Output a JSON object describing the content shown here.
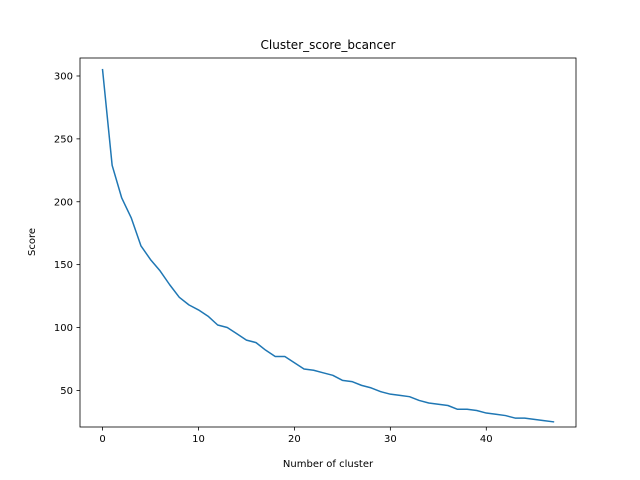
{
  "chart_data": {
    "type": "line",
    "title": "Cluster_score_bcancer",
    "xlabel": "Number of cluster",
    "ylabel": "Score",
    "xlim": [
      -2.35,
      49.35
    ],
    "ylim": [
      20.9,
      314.3
    ],
    "xticks": [
      0,
      10,
      20,
      30,
      40
    ],
    "yticks": [
      50,
      100,
      150,
      200,
      250,
      300
    ],
    "grid": false,
    "series": [
      {
        "color": "#1f77b4",
        "x": [
          0,
          1,
          2,
          3,
          4,
          5,
          6,
          7,
          8,
          9,
          10,
          11,
          12,
          13,
          14,
          15,
          16,
          17,
          18,
          19,
          20,
          21,
          22,
          23,
          24,
          25,
          26,
          27,
          28,
          29,
          30,
          31,
          32,
          33,
          34,
          35,
          36,
          37,
          38,
          39,
          40,
          41,
          42,
          43,
          44,
          45,
          46,
          47
        ],
        "values": [
          305,
          229,
          203,
          187,
          165,
          154,
          145,
          134,
          124,
          118,
          114,
          109,
          102,
          100,
          95,
          90,
          88,
          82,
          77,
          77,
          72,
          67,
          66,
          64,
          62,
          58,
          57,
          54,
          52,
          49,
          47,
          46,
          45,
          42,
          40,
          39,
          38,
          35,
          35,
          34,
          32,
          31,
          30,
          28,
          28,
          27,
          26,
          25
        ]
      }
    ]
  }
}
